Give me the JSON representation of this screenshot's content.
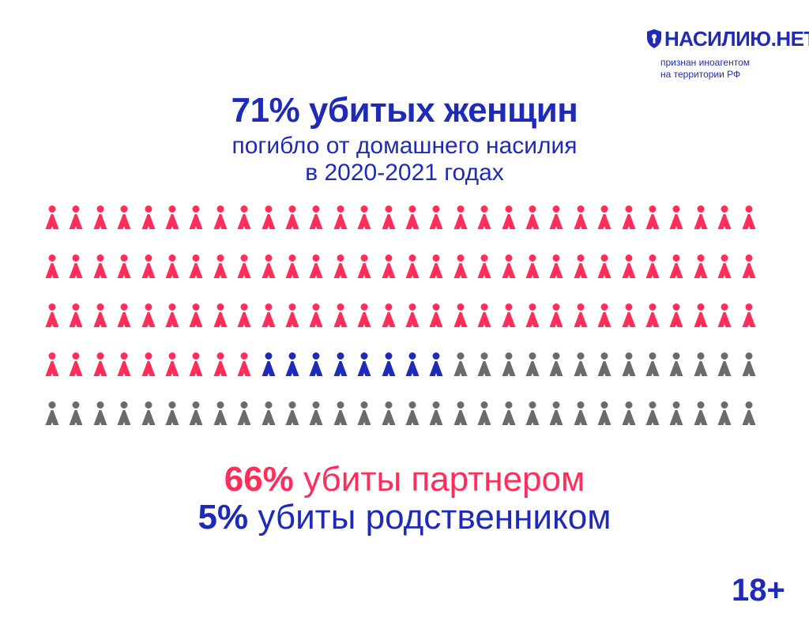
{
  "brand": {
    "name": "НАСИЛИЮ.НЕТ",
    "note_line1": "признан иноагентом",
    "note_line2": "на территории РФ",
    "logo_icon": "shield-icon",
    "color": "#1f2bb8"
  },
  "headline": {
    "main": "71% убитых женщин",
    "line2": "погибло от домашнего насилия",
    "line3": "в 2020-2021 годах"
  },
  "chart_data": {
    "type": "pictogram",
    "total_icons": 150,
    "rows": 5,
    "columns": 30,
    "series": [
      {
        "name": "убиты партнером",
        "percent": 66,
        "color": "#ff2d5a"
      },
      {
        "name": "убиты родственником",
        "percent": 5,
        "color": "#1f2bb8"
      },
      {
        "percent": 29,
        "color": "#6b6b6b"
      }
    ]
  },
  "legend": {
    "partner_pct": "66%",
    "partner_text": "убиты партнером",
    "relative_pct": "5%",
    "relative_text": "убиты родственником"
  },
  "age_rating": "18+"
}
